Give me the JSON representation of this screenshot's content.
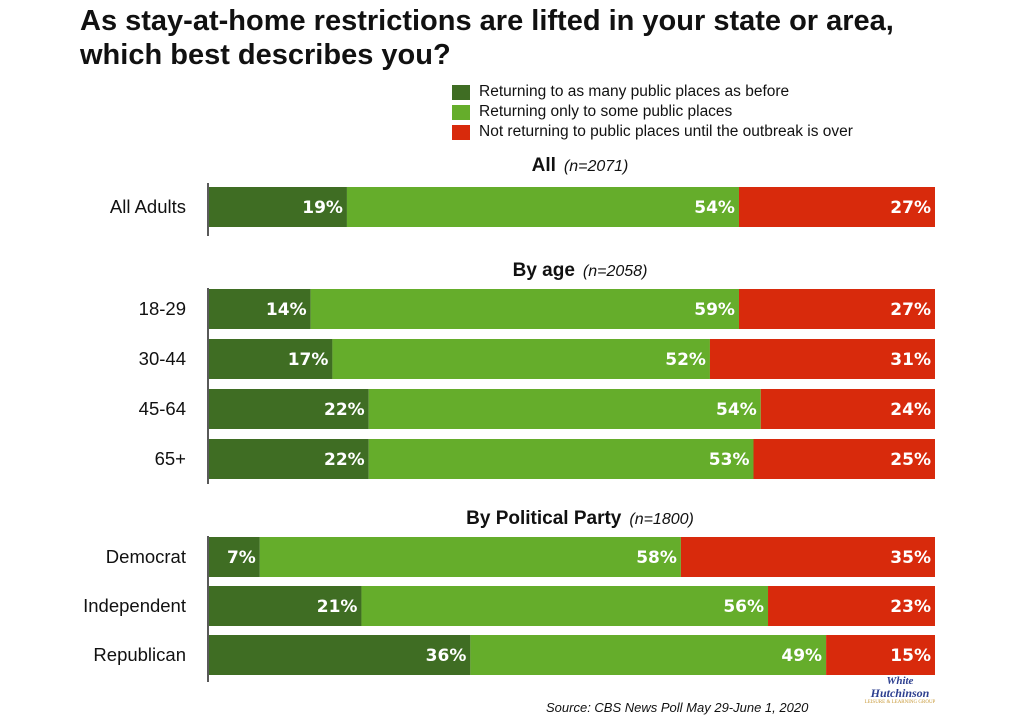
{
  "title": "As stay-at-home restrictions are lifted in your state or area, which best describes you?",
  "source": "Source: CBS News Poll May 29-June 1, 2020",
  "watermark": {
    "line1": "White",
    "line2": "Hutchinson",
    "line3": "LEISURE & LEARNING GROUP"
  },
  "colors": {
    "before": "#3f6d23",
    "some": "#65ad2b",
    "not": "#d82a0c"
  },
  "chart_data": {
    "type": "bar",
    "orientation": "horizontal",
    "stacked": true,
    "series": [
      {
        "name": "Returning to as many public places as before",
        "color": "#3f6d23"
      },
      {
        "name": "Returning only to some public places",
        "color": "#65ad2b"
      },
      {
        "name": "Not returning to public places until the outbreak is over",
        "color": "#d82a0c"
      }
    ],
    "groups": [
      {
        "title": "All",
        "n": "(n=2071)",
        "rows": [
          {
            "label": "All Adults",
            "values": [
              19,
              54,
              27
            ],
            "labels": [
              "19%",
              "54%",
              "27%"
            ]
          }
        ]
      },
      {
        "title": "By age",
        "n": "(n=2058)",
        "rows": [
          {
            "label": "18-29",
            "values": [
              14,
              59,
              27
            ],
            "labels": [
              "14%",
              "59%",
              "27%"
            ]
          },
          {
            "label": "30-44",
            "values": [
              17,
              52,
              31
            ],
            "labels": [
              "17%",
              "52%",
              "31%"
            ]
          },
          {
            "label": "45-64",
            "values": [
              22,
              54,
              24
            ],
            "labels": [
              "22%",
              "54%",
              "24%"
            ]
          },
          {
            "label": "65+",
            "values": [
              22,
              53,
              25
            ],
            "labels": [
              "22%",
              "53%",
              "25%"
            ]
          }
        ]
      },
      {
        "title": "By Political Party",
        "n": "(n=1800)",
        "rows": [
          {
            "label": "Democrat",
            "values": [
              7,
              58,
              35
            ],
            "labels": [
              "7%",
              "58%",
              "35%"
            ]
          },
          {
            "label": "Independent",
            "values": [
              21,
              56,
              23
            ],
            "labels": [
              "21%",
              "56%",
              "23%"
            ]
          },
          {
            "label": "Republican",
            "values": [
              36,
              49,
              15
            ],
            "labels": [
              "36%",
              "49%",
              "15%"
            ]
          }
        ]
      }
    ]
  }
}
